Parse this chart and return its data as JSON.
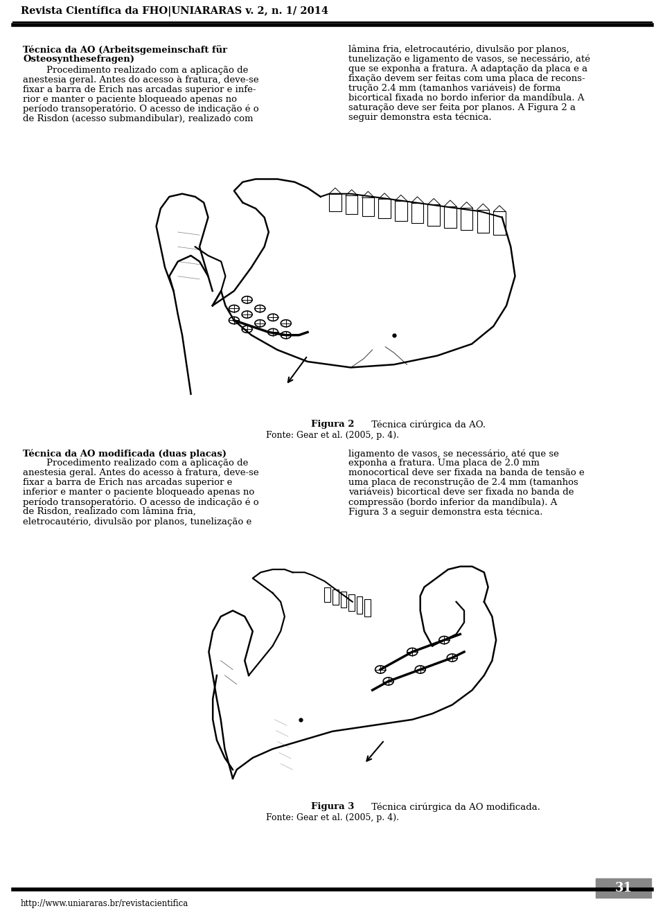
{
  "page_width": 9.6,
  "page_height": 13.18,
  "bg_color": "#ffffff",
  "header_text": "Revista Científica da FHO|UNIARARAS v. 2, n. 1/ 2014",
  "footer_url": "http://www.uniararas.br/revistacientifica",
  "page_number": "31",
  "figura2_caption_bold": "Figura 2",
  "figura2_caption_normal": " Técnica cirúrgica da AO.",
  "figura2_fonte": "Fonte: Gear et al. (2005, p. 4).",
  "figura3_caption_bold": "Figura 3",
  "figura3_caption_normal": " Técnica cirúrgica da AO modificada.",
  "figura3_fonte": "Fonte: Gear et al. (2005, p. 4)."
}
